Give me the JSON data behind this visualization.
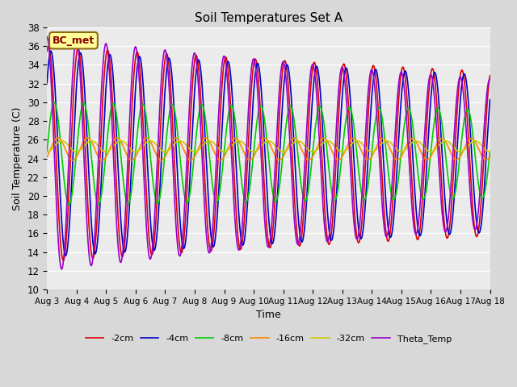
{
  "title": "Soil Temperatures Set A",
  "xlabel": "Time",
  "ylabel": "Soil Temperature (C)",
  "ylim": [
    10,
    38
  ],
  "background_color": "#d8d8d8",
  "plot_bg_color": "#ebebeb",
  "annotation_text": "BC_met",
  "annotation_facecolor": "#ffff99",
  "annotation_edgecolor": "#8b6914",
  "annotation_textcolor": "#8b0000",
  "colors": {
    "2cm": "#dd0000",
    "4cm": "#0000cc",
    "8cm": "#00cc00",
    "16cm": "#ff8800",
    "32cm": "#cccc00",
    "Theta_Temp": "#9900cc"
  },
  "tick_labels": [
    "Aug 3",
    "Aug 4",
    "Aug 5",
    "Aug 6",
    "Aug 7",
    "Aug 8",
    "Aug 9",
    "Aug 10",
    "Aug 11",
    "Aug 12",
    "Aug 13",
    "Aug 14",
    "Aug 15",
    "Aug 16",
    "Aug 17",
    "Aug 18"
  ],
  "tick_positions": [
    3,
    4,
    5,
    6,
    7,
    8,
    9,
    10,
    11,
    12,
    13,
    14,
    15,
    16,
    17,
    18
  ],
  "series_params": {
    "2cm": {
      "mean": 24.5,
      "amp0": 11.5,
      "damp": 0.018,
      "phase": 1.26
    },
    "4cm": {
      "mean": 24.5,
      "amp0": 11.0,
      "damp": 0.018,
      "phase": 0.76
    },
    "8cm": {
      "mean": 24.5,
      "amp0": 5.5,
      "damp": 0.01,
      "phase": 0.06
    },
    "16cm": {
      "mean": 25.0,
      "amp0": 1.2,
      "damp": 0.004,
      "phase": -0.74
    },
    "32cm": {
      "mean": 25.3,
      "amp0": 0.6,
      "damp": 0.002,
      "phase": -1.54
    },
    "Theta_Temp": {
      "mean": 24.5,
      "amp0": 12.5,
      "damp": 0.03,
      "phase": 1.61
    }
  }
}
